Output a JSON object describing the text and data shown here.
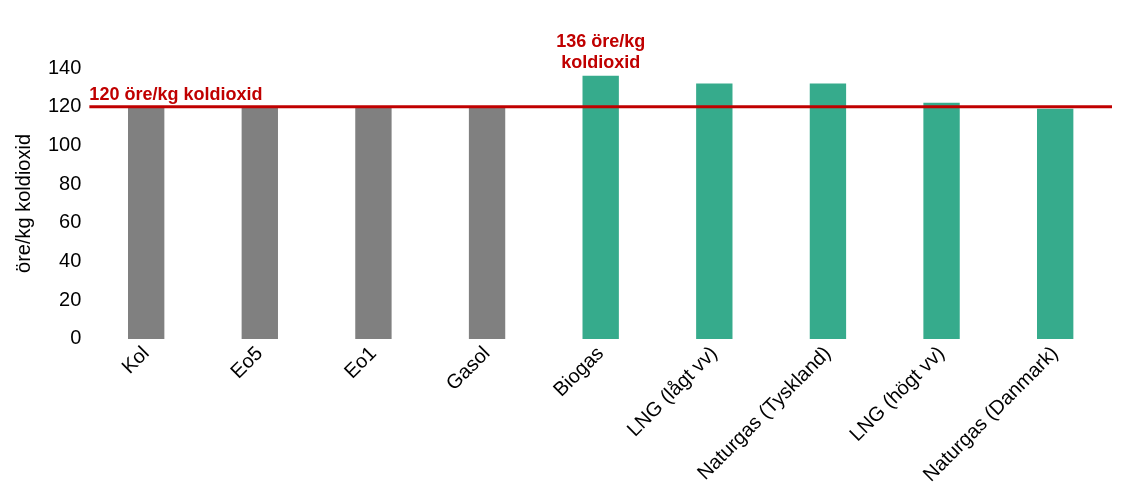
{
  "chart_data": {
    "type": "bar",
    "ylabel": "öre/kg koldioxid",
    "categories": [
      "Kol",
      "Eo5",
      "Eo1",
      "Gasol",
      "Biogas",
      "LNG (lågt vv)",
      "Naturgas (Tyskland)",
      "LNG (högt vv)",
      "Naturgas (Danmark)"
    ],
    "values": [
      120,
      120,
      120,
      120,
      136,
      132,
      132,
      122,
      119
    ],
    "colors": [
      "#808080",
      "#808080",
      "#808080",
      "#808080",
      "#36ab8c",
      "#36ab8c",
      "#36ab8c",
      "#36ab8c",
      "#36ab8c"
    ],
    "value_labels": [
      null,
      null,
      null,
      null,
      "136 öre/kg koldioxid",
      null,
      null,
      null,
      null
    ],
    "ylim": [
      0,
      140
    ],
    "yticks": [
      0,
      20,
      40,
      60,
      80,
      100,
      120,
      140
    ],
    "ref_lines": [
      {
        "axis": "y",
        "value": 120,
        "label": "120 öre/kg koldioxid",
        "color": "#c00000"
      }
    ],
    "grid": false,
    "legend": false
  }
}
